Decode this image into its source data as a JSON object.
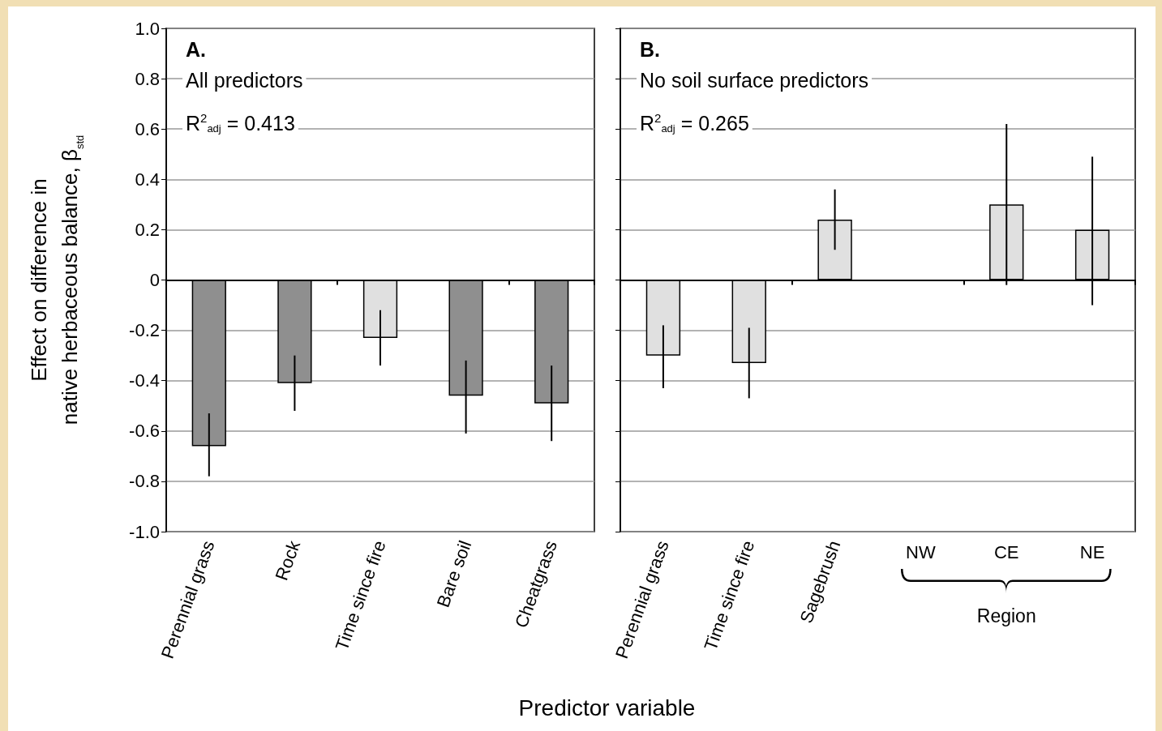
{
  "chart_data": [
    {
      "type": "bar",
      "ylabel": "Effect on difference in\nnative herbaceous balance, β$_{std}$",
      "xlabel": "Predictor variable",
      "categories": [
        "Perennial grass",
        "Rock",
        "Time since fire",
        "Bare soil",
        "Cheatgrass"
      ],
      "values": [
        -0.66,
        -0.41,
        -0.23,
        -0.46,
        -0.49
      ],
      "colors": [
        "#8f8f8f",
        "#8f8f8f",
        "#e0e0e0",
        "#8f8f8f",
        "#8f8f8f"
      ],
      "errors": [
        [
          -0.78,
          -0.53
        ],
        [
          -0.52,
          -0.3
        ],
        [
          -0.34,
          -0.12
        ],
        [
          -0.61,
          -0.32
        ],
        [
          -0.64,
          -0.34
        ]
      ],
      "ylim": [
        -1,
        1
      ],
      "yticks": [
        {
          "value": -1,
          "label": "-1.0"
        },
        -0.8,
        -0.6,
        -0.4,
        -0.2,
        0,
        0.2,
        0.4,
        0.6,
        0.8,
        {
          "value": 1,
          "label": "1.0"
        }
      ],
      "grid": "y",
      "annotations": [
        "A.",
        "All predictors",
        "R$^{2}$$_{adj}$ = 0.413"
      ]
    },
    {
      "type": "bar",
      "categories": [
        "Perennial grass",
        "Time since fire",
        "Sagebrush",
        "NW",
        "CE",
        "NE"
      ],
      "values": [
        -0.3,
        -0.33,
        0.24,
        null,
        0.3,
        0.2
      ],
      "colors": [
        "#e0e0e0",
        "#e0e0e0",
        "#e0e0e0",
        null,
        "#e0e0e0",
        "#e0e0e0"
      ],
      "errors": [
        [
          -0.43,
          -0.18
        ],
        [
          -0.47,
          -0.19
        ],
        [
          0.12,
          0.36
        ],
        null,
        [
          -0.02,
          0.62
        ],
        [
          -0.1,
          0.49
        ]
      ],
      "ylim": [
        -1,
        1
      ],
      "yticks": [
        -1,
        -0.8,
        -0.6,
        -0.4,
        -0.2,
        0,
        0.2,
        0.4,
        0.6,
        0.8,
        1
      ],
      "grid": "y",
      "tick_labels": "x",
      "annotations": [
        "B.",
        "No soil surface predictors",
        "R$^{2}$$_{adj}$ = 0.265",
        "Region"
      ]
    }
  ]
}
